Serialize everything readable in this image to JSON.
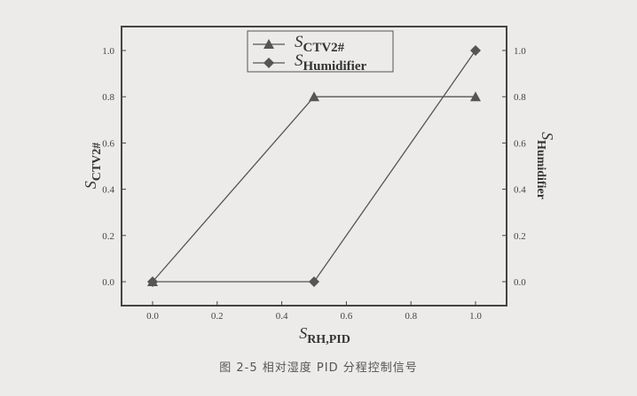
{
  "chart_data": {
    "type": "line",
    "x_axis": {
      "label_main": "S",
      "label_sub": "RH,PID",
      "range": [
        -0.1,
        1.1
      ],
      "ticks": [
        "0.0",
        "0.2",
        "0.4",
        "0.6",
        "0.8",
        "1.0"
      ]
    },
    "y_left": {
      "label_main": "S",
      "label_sub": "CTV2#",
      "range": [
        -0.1,
        1.1
      ],
      "ticks": [
        "0.0",
        "0.2",
        "0.4",
        "0.6",
        "0.8",
        "1.0"
      ]
    },
    "y_right": {
      "label_main": "S",
      "label_sub": "Humidifier",
      "range": [
        -0.1,
        1.1
      ],
      "ticks": [
        "0.0",
        "0.2",
        "0.4",
        "0.6",
        "0.8",
        "1.0"
      ]
    },
    "legend_position": "top-center",
    "grid": false,
    "series": [
      {
        "name_main": "S",
        "name_sub": "CTV2#",
        "marker": "triangle",
        "axis": "left",
        "x": [
          0,
          0.5,
          1.0
        ],
        "y": [
          0,
          0.8,
          0.8
        ],
        "color": "#555555"
      },
      {
        "name_main": "S",
        "name_sub": "Humidifier",
        "marker": "diamond",
        "axis": "right",
        "x": [
          0,
          0.5,
          1.0
        ],
        "y": [
          0,
          0,
          1.0
        ],
        "color": "#555555"
      }
    ]
  },
  "caption": "图 2-5 相对湿度 PID 分程控制信号"
}
